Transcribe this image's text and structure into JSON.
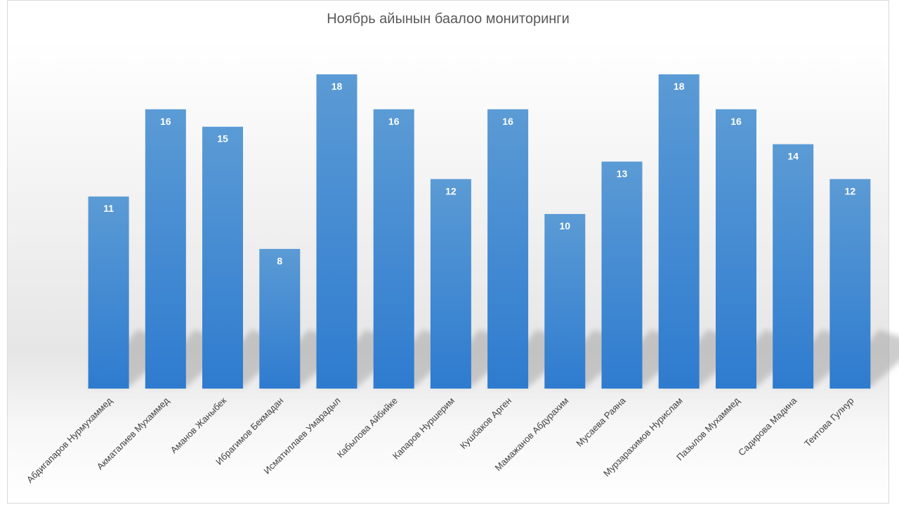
{
  "chart_data": {
    "type": "bar",
    "title": "Ноябрь айынын баалоо мониторинги",
    "xlabel": "",
    "ylabel": "",
    "ylim": [
      0,
      18
    ],
    "grid": false,
    "legend": "none",
    "categories": [
      "Абдигапаров Нурмухаммед",
      "Акматалиев Мухаммед",
      "Аманов Жаныбек",
      "Ибрагимов Бекмадан",
      "Исматиллаев Умарадыл",
      "Кабылова Айбийке",
      "Капаров Нуршерим",
      "Кушбаков Арген",
      "Мамажанов Абдурахим",
      "Мусаева Раяна",
      "Мурзарахимов Нурислам",
      "Пазылов Мухаммед",
      "Садирова Мадина",
      "Теитова Гулнур"
    ],
    "values": [
      11,
      16,
      15,
      8,
      18,
      16,
      12,
      16,
      10,
      13,
      18,
      16,
      14,
      12
    ],
    "colors": {
      "bar_top": "#5b9bd5",
      "bar_bottom": "#2e7bcf",
      "title": "#595959",
      "labels": "#ffffff",
      "ticks": "#404040"
    }
  }
}
